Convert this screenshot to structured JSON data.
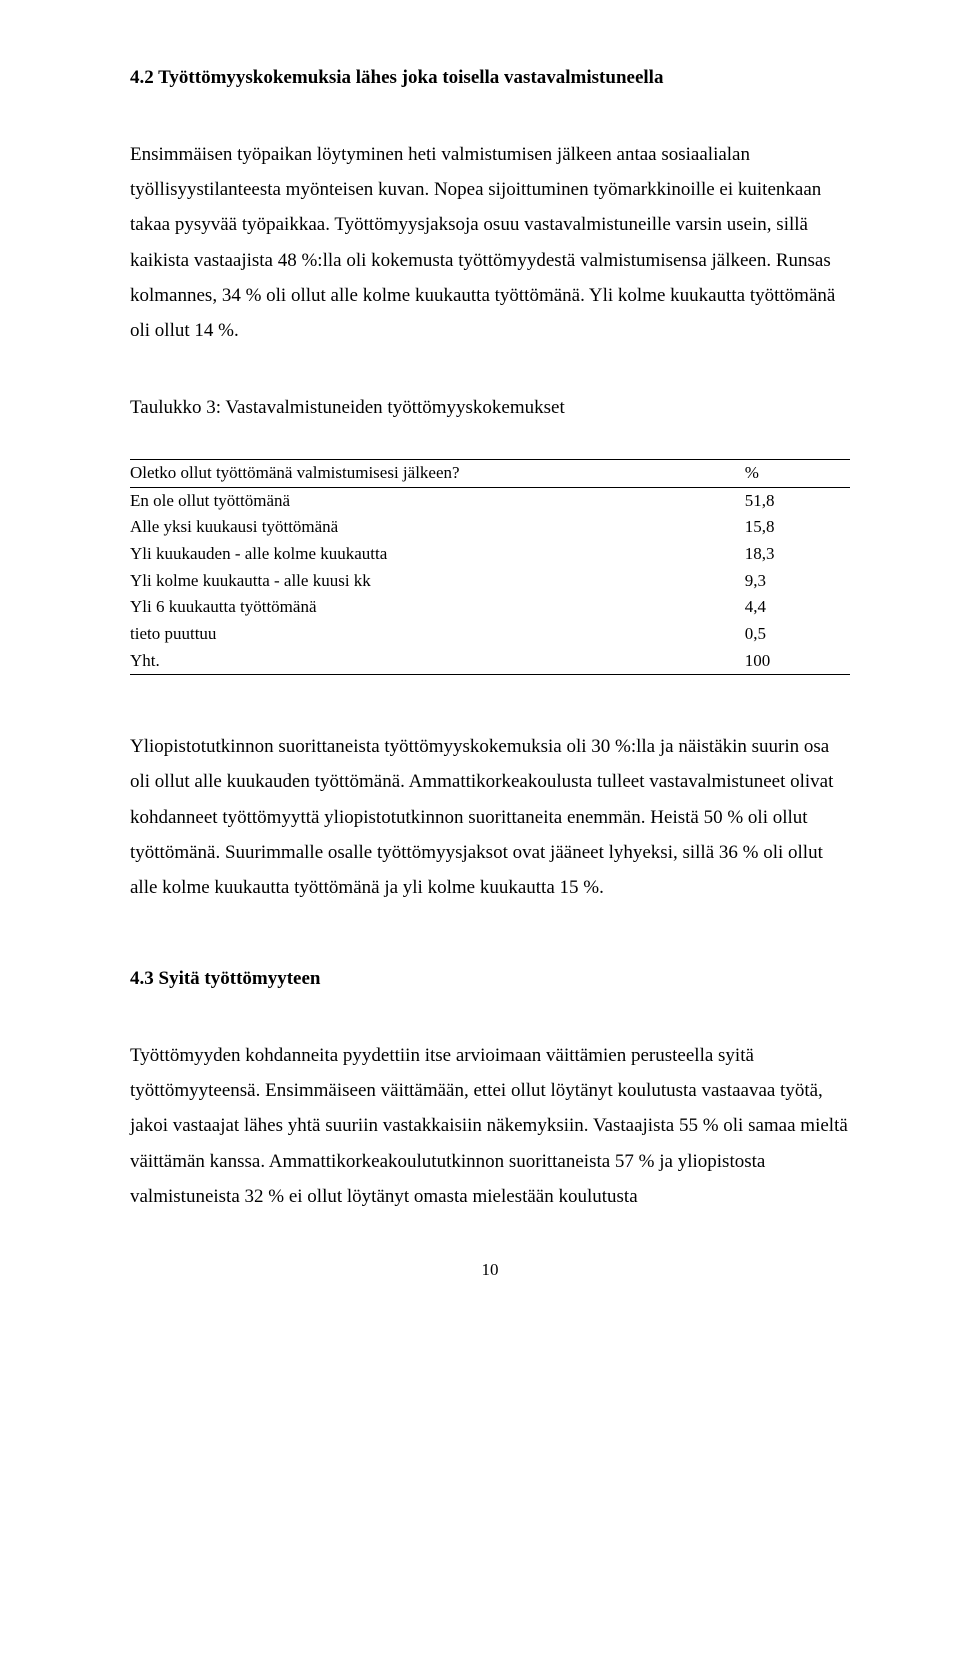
{
  "section42": {
    "heading": "4.2 Työttömyyskokemuksia lähes joka toisella vastavalmistuneella",
    "p1": "Ensimmäisen työpaikan löytyminen heti valmistumisen jälkeen antaa sosiaalialan työllisyystilanteesta myönteisen kuvan. Nopea sijoittuminen työmarkkinoille ei kuitenkaan takaa pysyvää työpaikkaa. Työttömyysjaksoja osuu vastavalmistuneille varsin usein, sillä kaikista vastaajista 48 %:lla oli kokemusta työttömyydestä valmistumisensa jälkeen. Runsas kolmannes, 34 % oli ollut alle kolme kuukautta työttömänä. Yli kolme kuukautta työttömänä oli ollut 14 %.",
    "table3_title": "Taulukko 3: Vastavalmistuneiden työttömyyskokemukset",
    "table3": {
      "header_label": "Oletko ollut työttömänä valmistumisesi jälkeen?",
      "header_val": "%",
      "rows": [
        {
          "label": "En ole ollut työttömänä",
          "val": "51,8"
        },
        {
          "label": "Alle yksi kuukausi työttömänä",
          "val": "15,8"
        },
        {
          "label": "Yli kuukauden - alle kolme kuukautta",
          "val": "18,3"
        },
        {
          "label": "Yli kolme kuukautta - alle kuusi kk",
          "val": "9,3"
        },
        {
          "label": "Yli 6 kuukautta työttömänä",
          "val": "4,4"
        },
        {
          "label": "tieto puuttuu",
          "val": "0,5"
        }
      ],
      "footer_label": "Yht.",
      "footer_val": "100"
    },
    "p2": "Yliopistotutkinnon suorittaneista työttömyyskokemuksia oli 30 %:lla ja näistäkin suurin osa oli ollut alle kuukauden työttömänä. Ammattikorkeakoulusta tulleet vastavalmistuneet olivat kohdanneet työttömyyttä yliopistotutkinnon suorittaneita enemmän. Heistä 50 % oli ollut työttömänä. Suurimmalle osalle työttömyysjaksot ovat jääneet lyhyeksi, sillä 36 % oli ollut alle kolme kuukautta työttömänä ja yli kolme kuukautta 15 %."
  },
  "section43": {
    "heading": "4.3 Syitä työttömyyteen",
    "p1": "Työttömyyden kohdanneita pyydettiin itse arvioimaan väittämien perusteella syitä työttömyyteensä. Ensimmäiseen väittämään, ettei ollut löytänyt koulutusta vastaavaa työtä, jakoi vastaajat lähes yhtä suuriin vastakkaisiin näkemyksiin. Vastaajista 55 % oli samaa mieltä väittämän kanssa. Ammattikorkeakoulututkinnon suorittaneista 57 % ja yliopistosta valmistuneista 32 % ei ollut löytänyt omasta mielestään koulutusta"
  },
  "page_number": "10"
}
